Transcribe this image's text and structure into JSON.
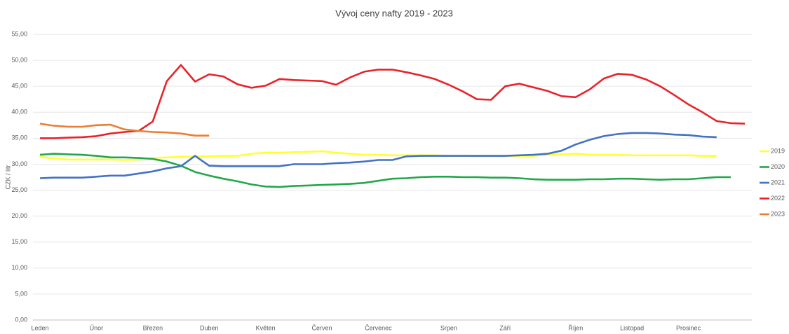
{
  "chart_data": {
    "type": "line",
    "title": "Vývoj ceny nafty 2019 - 2023",
    "y_label": "CZK / litr",
    "categories": [
      "Leden",
      null,
      null,
      null,
      "Únor",
      null,
      null,
      null,
      "Březen",
      null,
      null,
      null,
      "Duben",
      null,
      null,
      null,
      "Květen",
      null,
      null,
      null,
      "Červen",
      null,
      null,
      null,
      "Červenec",
      null,
      null,
      null,
      null,
      "Srpen",
      null,
      null,
      null,
      "Září",
      null,
      null,
      null,
      null,
      "Říjen",
      null,
      null,
      null,
      "Listopad",
      null,
      null,
      null,
      "Prosinec",
      null,
      null,
      null,
      null
    ],
    "ylim": [
      0,
      55
    ],
    "yticks": [
      {
        "value": 0,
        "label": "0,00"
      },
      {
        "value": 5,
        "label": "5,00"
      },
      {
        "value": 10,
        "label": "10,00"
      },
      {
        "value": 15,
        "label": "15,00"
      },
      {
        "value": 20,
        "label": "20,00"
      },
      {
        "value": 25,
        "label": "25,00"
      },
      {
        "value": 30,
        "label": "30,00"
      },
      {
        "value": 35,
        "label": "35,00"
      },
      {
        "value": 40,
        "label": "40,00"
      },
      {
        "value": 45,
        "label": "45,00"
      },
      {
        "value": 50,
        "label": "50,00"
      },
      {
        "value": 55,
        "label": "55,00"
      }
    ],
    "grid": true,
    "legend": "right",
    "series": [
      {
        "name": "2019",
        "color": "#ffff33",
        "values": [
          31.4,
          31.1,
          30.9,
          30.9,
          30.9,
          30.9,
          30.8,
          30.9,
          31.2,
          31.3,
          31.4,
          31.5,
          31.5,
          31.6,
          31.6,
          32.0,
          32.2,
          32.2,
          32.3,
          32.4,
          32.5,
          32.2,
          32.0,
          31.8,
          31.8,
          31.7,
          31.7,
          31.7,
          31.7,
          31.6,
          31.6,
          31.5,
          31.5,
          31.5,
          31.6,
          31.6,
          31.8,
          31.9,
          32.0,
          31.8,
          31.8,
          31.8,
          31.7,
          31.7,
          31.7,
          31.7,
          31.7,
          31.6,
          31.6,
          null,
          null
        ]
      },
      {
        "name": "2020",
        "color": "#22a84a",
        "values": [
          31.8,
          32.0,
          31.9,
          31.8,
          31.6,
          31.3,
          31.3,
          31.2,
          31.0,
          30.5,
          29.7,
          28.5,
          27.8,
          27.2,
          26.7,
          26.1,
          25.7,
          25.6,
          25.8,
          25.9,
          26.0,
          26.1,
          26.2,
          26.4,
          26.8,
          27.2,
          27.3,
          27.5,
          27.6,
          27.6,
          27.5,
          27.5,
          27.4,
          27.4,
          27.3,
          27.1,
          27.0,
          27.0,
          27.0,
          27.1,
          27.1,
          27.2,
          27.2,
          27.1,
          27.0,
          27.1,
          27.1,
          27.3,
          27.5,
          27.5,
          null
        ]
      },
      {
        "name": "2021",
        "color": "#4472c4",
        "values": [
          27.3,
          27.4,
          27.4,
          27.4,
          27.6,
          27.8,
          27.8,
          28.2,
          28.6,
          29.2,
          29.6,
          31.6,
          29.7,
          29.6,
          29.6,
          29.6,
          29.6,
          29.6,
          30.0,
          30.0,
          30.0,
          30.2,
          30.3,
          30.5,
          30.8,
          30.8,
          31.5,
          31.6,
          31.6,
          31.6,
          31.6,
          31.6,
          31.6,
          31.6,
          31.7,
          31.8,
          32.0,
          32.6,
          33.8,
          34.7,
          35.4,
          35.8,
          36.0,
          36.0,
          35.9,
          35.7,
          35.6,
          35.3,
          35.2,
          null,
          null
        ]
      },
      {
        "name": "2022",
        "color": "#e8232a",
        "values": [
          35.0,
          35.0,
          35.1,
          35.2,
          35.4,
          35.9,
          36.2,
          36.4,
          38.2,
          46.0,
          49.1,
          45.9,
          47.3,
          46.9,
          45.4,
          44.7,
          45.1,
          46.4,
          46.2,
          46.1,
          46.0,
          45.3,
          46.7,
          47.8,
          48.2,
          48.2,
          47.7,
          47.1,
          46.4,
          45.3,
          44.0,
          42.5,
          42.4,
          45.0,
          45.5,
          44.8,
          44.1,
          43.1,
          42.9,
          44.4,
          46.5,
          47.4,
          47.2,
          46.3,
          45.0,
          43.3,
          41.5,
          40.0,
          38.3,
          37.9,
          37.8
        ]
      },
      {
        "name": "2023",
        "color": "#ed7d31",
        "values": [
          37.8,
          37.4,
          37.2,
          37.2,
          37.5,
          37.6,
          36.7,
          36.4,
          36.2,
          36.1,
          35.9,
          35.5,
          35.5,
          null,
          null,
          null,
          null,
          null,
          null,
          null,
          null,
          null,
          null,
          null,
          null,
          null,
          null,
          null,
          null,
          null,
          null,
          null,
          null,
          null,
          null,
          null,
          null,
          null,
          null,
          null,
          null,
          null,
          null,
          null,
          null,
          null,
          null,
          null,
          null,
          null,
          null
        ]
      }
    ]
  }
}
